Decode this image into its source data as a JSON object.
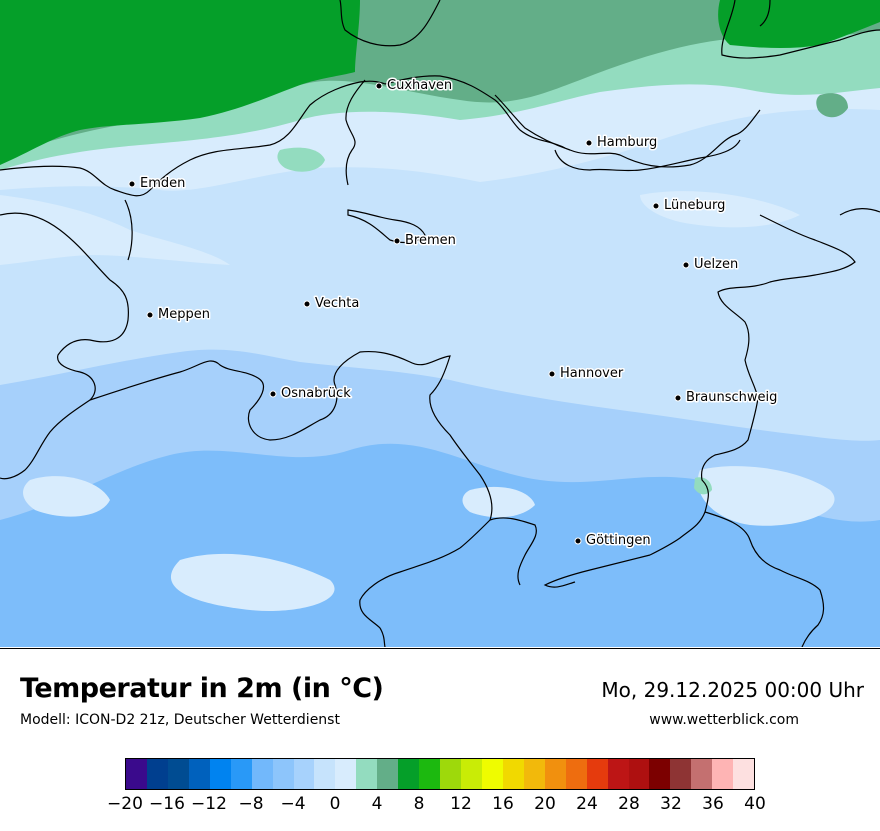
{
  "map": {
    "colors": {
      "land_base": "#c6e3fc",
      "land_light": "#d8ecfd",
      "land_mid": "#a6d0fb",
      "land_dark": "#7dbdfa",
      "coast_mint": "#93dcbf",
      "coast_green": "#63ae88",
      "sea_green": "#059f29",
      "border": "#000000"
    },
    "cities": [
      {
        "name": "Cuxhaven"
      },
      {
        "name": "Hamburg"
      },
      {
        "name": "Emden"
      },
      {
        "name": "Lüneburg"
      },
      {
        "name": "Bremen"
      },
      {
        "name": "Uelzen"
      },
      {
        "name": "Vechta"
      },
      {
        "name": "Meppen"
      },
      {
        "name": "Hannover"
      },
      {
        "name": "Osnabrück"
      },
      {
        "name": "Braunschweig"
      },
      {
        "name": "Göttingen"
      }
    ]
  },
  "footer": {
    "title": "Temperatur in 2m (in °C)",
    "model": "Modell: ICON-D2 21z, Deutscher Wetterdienst",
    "datetime": "Mo, 29.12.2025 00:00 Uhr",
    "website": "www.wetterblick.com"
  },
  "colorbar": {
    "colors": [
      "#3a0a8c",
      "#003f8f",
      "#004c92",
      "#0061bd",
      "#0083f0",
      "#2999f7",
      "#72b8fb",
      "#8dc5fb",
      "#a7d2fc",
      "#c6e3fc",
      "#d8ecfd",
      "#93dcbf",
      "#63ae88",
      "#059f29",
      "#1cb90f",
      "#9ed90b",
      "#c9ec06",
      "#effc00",
      "#f1d900",
      "#f2b90b",
      "#f1900e",
      "#ee6d0f",
      "#e53b0d",
      "#bd1515",
      "#ae1010",
      "#7c0000",
      "#8e3434",
      "#c47070",
      "#feb4b4",
      "#fde0e0"
    ],
    "ticks": [
      "−20",
      "−16",
      "−12",
      "−8",
      "−4",
      "0",
      "4",
      "8",
      "12",
      "16",
      "20",
      "24",
      "28",
      "32",
      "36",
      "40"
    ]
  }
}
